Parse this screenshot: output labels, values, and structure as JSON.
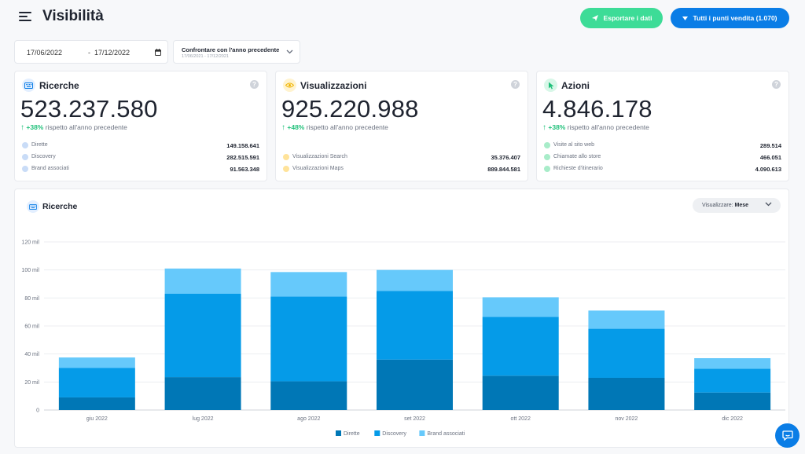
{
  "header": {
    "title": "Visibilità",
    "export_label": "Esportare i dati",
    "stores_label": "Tutti i punti vendita (1.070)"
  },
  "filters": {
    "date_start": "17/06/2022",
    "date_separator": "-",
    "date_end": "17/12/2022",
    "compare_title": "Confrontare con l'anno precedente",
    "compare_range": "17/06/2021 - 17/12/2021"
  },
  "cards": [
    {
      "title": "Ricerche",
      "value": "523.237.580",
      "delta": "+38%",
      "delta_text": "rispetto all'anno precedente",
      "rows": [
        {
          "label": "Dirette",
          "value": "149.158.641"
        },
        {
          "label": "Discovery",
          "value": "282.515.591"
        },
        {
          "label": "Brand associati",
          "value": "91.563.348"
        }
      ]
    },
    {
      "title": "Visualizzazioni",
      "value": "925.220.988",
      "delta": "+48%",
      "delta_text": "rispetto all'anno precedente",
      "rows": [
        {
          "label": "Visualizzazioni Search",
          "value": "35.376.407"
        },
        {
          "label": "Visualizzazioni Maps",
          "value": "889.844.581"
        }
      ]
    },
    {
      "title": "Azioni",
      "value": "4.846.178",
      "delta": "+38%",
      "delta_text": "rispetto all'anno precedente",
      "rows": [
        {
          "label": "Visite al sito web",
          "value": "289.514"
        },
        {
          "label": "Chiamate allo store",
          "value": "466.051"
        },
        {
          "label": "Richieste d'itinerario",
          "value": "4.090.613"
        }
      ]
    }
  ],
  "chart_panel": {
    "title": "Ricerche",
    "view_label": "Visualizzare:",
    "view_value": "Mese"
  },
  "colors": {
    "dirette": "#0077b6",
    "discovery": "#059be8",
    "brand": "#66c9fb",
    "green": "#3ddc97",
    "blue": "#0a7de6"
  },
  "chart_data": {
    "type": "bar",
    "stacked": true,
    "categories": [
      "giu 2022",
      "lug 2022",
      "ago 2022",
      "set 2022",
      "ott 2022",
      "nov 2022",
      "dic 2022"
    ],
    "series": [
      {
        "name": "Dirette",
        "values": [
          9,
          23.5,
          20.5,
          36,
          24.5,
          23,
          12.5
        ]
      },
      {
        "name": "Discovery",
        "values": [
          21,
          59.5,
          60.5,
          49,
          42,
          35,
          17
        ]
      },
      {
        "name": "Brand associati",
        "values": [
          7.5,
          18,
          17.5,
          15,
          14,
          13,
          7.5
        ]
      }
    ],
    "ylim": [
      0,
      120
    ],
    "yticks": [
      0,
      20,
      40,
      60,
      80,
      100,
      120
    ],
    "ytick_labels": [
      "0",
      "20 mil",
      "40 mil",
      "60 mil",
      "80 mil",
      "100 mil",
      "120 mil"
    ],
    "grid": true,
    "legend": "bottom"
  }
}
